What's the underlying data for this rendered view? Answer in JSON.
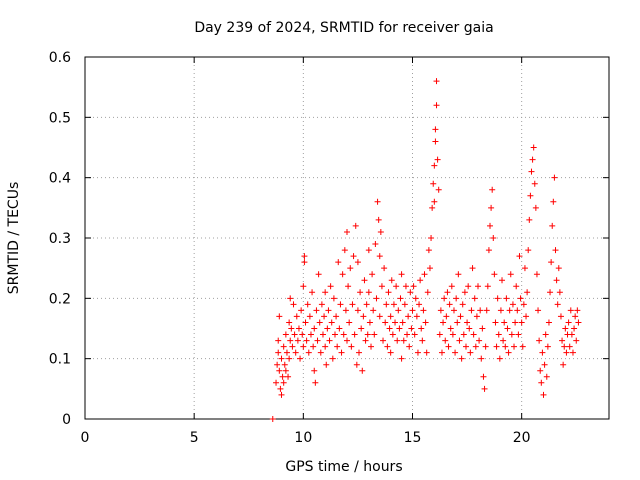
{
  "chart_data": {
    "type": "scatter",
    "title": "Day 239 of 2024, SRMTID for receiver gaia",
    "xlabel": "GPS time / hours",
    "ylabel": "SRMTID / TECUs",
    "xlim": [
      0,
      24
    ],
    "ylim": [
      0,
      0.6
    ],
    "x_ticks": [
      0,
      5,
      10,
      15,
      20
    ],
    "x_tick_labels": [
      "0",
      "5",
      "10",
      "15",
      "20"
    ],
    "y_ticks": [
      0,
      0.1,
      0.2,
      0.3,
      0.4,
      0.5,
      0.6
    ],
    "y_tick_labels": [
      "0",
      "0.1",
      "0.2",
      "0.3",
      "0.4",
      "0.5",
      "0.6"
    ],
    "grid": true,
    "marker": "+",
    "series": [
      {
        "name": "SRMTID",
        "color": "#ff0000",
        "points": [
          [
            8.6,
            0.0
          ],
          [
            8.75,
            0.06
          ],
          [
            8.8,
            0.09
          ],
          [
            8.85,
            0.11
          ],
          [
            8.85,
            0.13
          ],
          [
            8.9,
            0.08
          ],
          [
            8.9,
            0.17
          ],
          [
            8.95,
            0.05
          ],
          [
            9.0,
            0.04
          ],
          [
            9.0,
            0.1
          ],
          [
            9.05,
            0.07
          ],
          [
            9.1,
            0.12
          ],
          [
            9.1,
            0.06
          ],
          [
            9.15,
            0.09
          ],
          [
            9.2,
            0.08
          ],
          [
            9.2,
            0.14
          ],
          [
            9.25,
            0.11
          ],
          [
            9.3,
            0.07
          ],
          [
            9.35,
            0.16
          ],
          [
            9.35,
            0.1
          ],
          [
            9.4,
            0.13
          ],
          [
            9.4,
            0.2
          ],
          [
            9.45,
            0.15
          ],
          [
            9.5,
            0.12
          ],
          [
            9.55,
            0.19
          ],
          [
            9.6,
            0.14
          ],
          [
            9.65,
            0.11
          ],
          [
            9.7,
            0.17
          ],
          [
            9.75,
            0.13
          ],
          [
            9.8,
            0.15
          ],
          [
            9.85,
            0.1
          ],
          [
            9.9,
            0.18
          ],
          [
            9.95,
            0.14
          ],
          [
            10.0,
            0.12
          ],
          [
            10.0,
            0.22
          ],
          [
            10.05,
            0.26
          ],
          [
            10.05,
            0.27
          ],
          [
            10.1,
            0.16
          ],
          [
            10.15,
            0.13
          ],
          [
            10.2,
            0.19
          ],
          [
            10.25,
            0.11
          ],
          [
            10.3,
            0.17
          ],
          [
            10.35,
            0.14
          ],
          [
            10.4,
            0.21
          ],
          [
            10.45,
            0.12
          ],
          [
            10.5,
            0.08
          ],
          [
            10.5,
            0.15
          ],
          [
            10.55,
            0.06
          ],
          [
            10.6,
            0.18
          ],
          [
            10.65,
            0.13
          ],
          [
            10.7,
            0.24
          ],
          [
            10.75,
            0.16
          ],
          [
            10.8,
            0.11
          ],
          [
            10.85,
            0.19
          ],
          [
            10.9,
            0.14
          ],
          [
            10.95,
            0.17
          ],
          [
            11.0,
            0.12
          ],
          [
            11.0,
            0.21
          ],
          [
            11.05,
            0.09
          ],
          [
            11.1,
            0.15
          ],
          [
            11.15,
            0.18
          ],
          [
            11.2,
            0.13
          ],
          [
            11.25,
            0.22
          ],
          [
            11.3,
            0.16
          ],
          [
            11.35,
            0.1
          ],
          [
            11.4,
            0.2
          ],
          [
            11.45,
            0.14
          ],
          [
            11.5,
            0.17
          ],
          [
            11.55,
            0.12
          ],
          [
            11.6,
            0.26
          ],
          [
            11.65,
            0.15
          ],
          [
            11.7,
            0.19
          ],
          [
            11.75,
            0.11
          ],
          [
            11.8,
            0.24
          ],
          [
            11.85,
            0.14
          ],
          [
            11.9,
            0.28
          ],
          [
            11.95,
            0.18
          ],
          [
            12.0,
            0.13
          ],
          [
            12.0,
            0.31
          ],
          [
            12.05,
            0.22
          ],
          [
            12.1,
            0.16
          ],
          [
            12.15,
            0.25
          ],
          [
            12.2,
            0.12
          ],
          [
            12.25,
            0.19
          ],
          [
            12.3,
            0.27
          ],
          [
            12.35,
            0.14
          ],
          [
            12.4,
            0.32
          ],
          [
            12.45,
            0.09
          ],
          [
            12.5,
            0.18
          ],
          [
            12.5,
            0.26
          ],
          [
            12.55,
            0.11
          ],
          [
            12.6,
            0.21
          ],
          [
            12.65,
            0.15
          ],
          [
            12.7,
            0.08
          ],
          [
            12.75,
            0.17
          ],
          [
            12.8,
            0.23
          ],
          [
            12.85,
            0.13
          ],
          [
            12.9,
            0.19
          ],
          [
            12.95,
            0.14
          ],
          [
            13.0,
            0.21
          ],
          [
            13.0,
            0.28
          ],
          [
            13.05,
            0.16
          ],
          [
            13.1,
            0.12
          ],
          [
            13.15,
            0.24
          ],
          [
            13.2,
            0.18
          ],
          [
            13.25,
            0.14
          ],
          [
            13.3,
            0.29
          ],
          [
            13.35,
            0.2
          ],
          [
            13.4,
            0.36
          ],
          [
            13.45,
            0.33
          ],
          [
            13.5,
            0.27
          ],
          [
            13.5,
            0.17
          ],
          [
            13.55,
            0.31
          ],
          [
            13.6,
            0.22
          ],
          [
            13.65,
            0.13
          ],
          [
            13.7,
            0.25
          ],
          [
            13.75,
            0.16
          ],
          [
            13.8,
            0.19
          ],
          [
            13.85,
            0.12
          ],
          [
            13.9,
            0.21
          ],
          [
            13.95,
            0.15
          ],
          [
            14.0,
            0.17
          ],
          [
            14.0,
            0.11
          ],
          [
            14.05,
            0.23
          ],
          [
            14.1,
            0.14
          ],
          [
            14.15,
            0.19
          ],
          [
            14.2,
            0.16
          ],
          [
            14.25,
            0.22
          ],
          [
            14.3,
            0.13
          ],
          [
            14.35,
            0.18
          ],
          [
            14.4,
            0.15
          ],
          [
            14.45,
            0.2
          ],
          [
            14.5,
            0.1
          ],
          [
            14.5,
            0.24
          ],
          [
            14.55,
            0.16
          ],
          [
            14.6,
            0.13
          ],
          [
            14.65,
            0.19
          ],
          [
            14.7,
            0.22
          ],
          [
            14.75,
            0.14
          ],
          [
            14.8,
            0.17
          ],
          [
            14.85,
            0.12
          ],
          [
            14.9,
            0.21
          ],
          [
            14.95,
            0.15
          ],
          [
            15.0,
            0.18
          ],
          [
            15.05,
            0.22
          ],
          [
            15.1,
            0.14
          ],
          [
            15.15,
            0.2
          ],
          [
            15.2,
            0.17
          ],
          [
            15.25,
            0.11
          ],
          [
            15.3,
            0.19
          ],
          [
            15.35,
            0.23
          ],
          [
            15.4,
            0.15
          ],
          [
            15.45,
            0.13
          ],
          [
            15.5,
            0.18
          ],
          [
            15.55,
            0.24
          ],
          [
            15.6,
            0.16
          ],
          [
            15.65,
            0.11
          ],
          [
            15.7,
            0.21
          ],
          [
            15.75,
            0.28
          ],
          [
            15.8,
            0.25
          ],
          [
            15.85,
            0.3
          ],
          [
            15.9,
            0.35
          ],
          [
            15.95,
            0.39
          ],
          [
            16.0,
            0.42
          ],
          [
            16.0,
            0.36
          ],
          [
            16.05,
            0.46
          ],
          [
            16.05,
            0.48
          ],
          [
            16.1,
            0.56
          ],
          [
            16.1,
            0.52
          ],
          [
            16.15,
            0.43
          ],
          [
            16.2,
            0.38
          ],
          [
            16.25,
            0.14
          ],
          [
            16.3,
            0.18
          ],
          [
            16.35,
            0.11
          ],
          [
            16.4,
            0.16
          ],
          [
            16.45,
            0.2
          ],
          [
            16.5,
            0.13
          ],
          [
            16.55,
            0.17
          ],
          [
            16.6,
            0.21
          ],
          [
            16.65,
            0.12
          ],
          [
            16.7,
            0.19
          ],
          [
            16.75,
            0.15
          ],
          [
            16.8,
            0.22
          ],
          [
            16.85,
            0.14
          ],
          [
            16.9,
            0.18
          ],
          [
            16.95,
            0.11
          ],
          [
            17.0,
            0.2
          ],
          [
            17.05,
            0.16
          ],
          [
            17.1,
            0.24
          ],
          [
            17.15,
            0.13
          ],
          [
            17.2,
            0.17
          ],
          [
            17.25,
            0.1
          ],
          [
            17.3,
            0.19
          ],
          [
            17.35,
            0.14
          ],
          [
            17.4,
            0.21
          ],
          [
            17.45,
            0.12
          ],
          [
            17.5,
            0.16
          ],
          [
            17.55,
            0.22
          ],
          [
            17.6,
            0.15
          ],
          [
            17.65,
            0.11
          ],
          [
            17.7,
            0.18
          ],
          [
            17.75,
            0.25
          ],
          [
            17.8,
            0.14
          ],
          [
            17.85,
            0.2
          ],
          [
            17.9,
            0.12
          ],
          [
            17.95,
            0.17
          ],
          [
            18.0,
            0.22
          ],
          [
            18.05,
            0.13
          ],
          [
            18.1,
            0.18
          ],
          [
            18.15,
            0.1
          ],
          [
            18.2,
            0.15
          ],
          [
            18.25,
            0.07
          ],
          [
            18.3,
            0.05
          ],
          [
            18.35,
            0.12
          ],
          [
            18.4,
            0.18
          ],
          [
            18.45,
            0.22
          ],
          [
            18.5,
            0.28
          ],
          [
            18.55,
            0.32
          ],
          [
            18.6,
            0.35
          ],
          [
            18.65,
            0.38
          ],
          [
            18.7,
            0.3
          ],
          [
            18.75,
            0.24
          ],
          [
            18.8,
            0.16
          ],
          [
            18.85,
            0.12
          ],
          [
            18.9,
            0.2
          ],
          [
            18.95,
            0.14
          ],
          [
            19.0,
            0.1
          ],
          [
            19.05,
            0.18
          ],
          [
            19.1,
            0.23
          ],
          [
            19.15,
            0.13
          ],
          [
            19.2,
            0.16
          ],
          [
            19.25,
            0.12
          ],
          [
            19.3,
            0.2
          ],
          [
            19.35,
            0.15
          ],
          [
            19.4,
            0.11
          ],
          [
            19.45,
            0.18
          ],
          [
            19.5,
            0.24
          ],
          [
            19.55,
            0.14
          ],
          [
            19.6,
            0.19
          ],
          [
            19.65,
            0.12
          ],
          [
            19.7,
            0.16
          ],
          [
            19.75,
            0.22
          ],
          [
            19.8,
            0.18
          ],
          [
            19.85,
            0.14
          ],
          [
            19.9,
            0.27
          ],
          [
            19.95,
            0.2
          ],
          [
            20.0,
            0.16
          ],
          [
            20.05,
            0.12
          ],
          [
            20.1,
            0.19
          ],
          [
            20.15,
            0.25
          ],
          [
            20.2,
            0.17
          ],
          [
            20.25,
            0.21
          ],
          [
            20.3,
            0.28
          ],
          [
            20.35,
            0.33
          ],
          [
            20.4,
            0.37
          ],
          [
            20.45,
            0.41
          ],
          [
            20.5,
            0.43
          ],
          [
            20.55,
            0.45
          ],
          [
            20.6,
            0.39
          ],
          [
            20.65,
            0.35
          ],
          [
            20.7,
            0.24
          ],
          [
            20.75,
            0.18
          ],
          [
            20.8,
            0.13
          ],
          [
            20.85,
            0.08
          ],
          [
            20.9,
            0.06
          ],
          [
            20.95,
            0.11
          ],
          [
            21.0,
            0.04
          ],
          [
            21.05,
            0.09
          ],
          [
            21.1,
            0.14
          ],
          [
            21.15,
            0.07
          ],
          [
            21.2,
            0.12
          ],
          [
            21.25,
            0.16
          ],
          [
            21.3,
            0.21
          ],
          [
            21.35,
            0.26
          ],
          [
            21.4,
            0.32
          ],
          [
            21.45,
            0.36
          ],
          [
            21.5,
            0.4
          ],
          [
            21.55,
            0.28
          ],
          [
            21.6,
            0.23
          ],
          [
            21.65,
            0.19
          ],
          [
            21.7,
            0.25
          ],
          [
            21.75,
            0.21
          ],
          [
            21.8,
            0.17
          ],
          [
            21.85,
            0.13
          ],
          [
            21.9,
            0.09
          ],
          [
            21.95,
            0.12
          ],
          [
            22.0,
            0.15
          ],
          [
            22.05,
            0.11
          ],
          [
            22.1,
            0.14
          ],
          [
            22.15,
            0.16
          ],
          [
            22.2,
            0.12
          ],
          [
            22.25,
            0.18
          ],
          [
            22.3,
            0.14
          ],
          [
            22.35,
            0.11
          ],
          [
            22.4,
            0.15
          ],
          [
            22.45,
            0.17
          ],
          [
            22.5,
            0.13
          ],
          [
            22.55,
            0.18
          ],
          [
            22.6,
            0.16
          ]
        ]
      }
    ]
  }
}
